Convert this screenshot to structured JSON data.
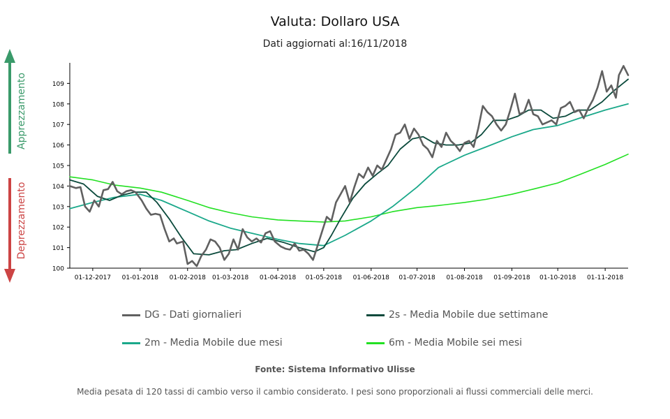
{
  "header": {
    "title": "Valuta: Dollaro USA",
    "subtitle": "Dati aggiornati al:16/11/2018"
  },
  "side_labels": {
    "up": "Apprezzamento",
    "down": "Deprezzamento",
    "up_color": "#3a9a6a",
    "down_color": "#cc4444"
  },
  "legend": [
    {
      "key": "dg",
      "label": "DG - Dati giornalieri",
      "color": "#606060"
    },
    {
      "key": "s2",
      "label": "2s - Media Mobile due settimane",
      "color": "#0b4a3c"
    },
    {
      "key": "m2",
      "label": "2m - Media Mobile due mesi",
      "color": "#1aa88a"
    },
    {
      "key": "m6",
      "label": "6m - Media Mobile sei mesi",
      "color": "#22e022"
    }
  ],
  "footer": {
    "source": "Fonte: Sistema Informativo Ulisse",
    "note": "Media pesata di 120 tassi di cambio verso il cambio considerato. I pesi sono proporzionali ai flussi commerciali delle merci."
  },
  "chart_data": {
    "type": "line",
    "x_ticks": [
      "01-12-2017",
      "01-01-2018",
      "01-02-2018",
      "01-03-2018",
      "01-04-2018",
      "01-05-2018",
      "01-06-2018",
      "01-07-2018",
      "01-08-2018",
      "01-09-2018",
      "01-10-2018",
      "01-11-2018"
    ],
    "x_range": [
      "2017-11-16",
      "2018-11-16"
    ],
    "ylim": [
      100,
      110
    ],
    "y_ticks": [
      100,
      101,
      102,
      103,
      104,
      105,
      106,
      107,
      108,
      109
    ],
    "grid": false,
    "legend_position": "bottom",
    "series": [
      {
        "key": "dg",
        "name": "DG - Dati giornalieri",
        "color": "#606060",
        "points": [
          [
            "2017-11-16",
            104.0
          ],
          [
            "2017-11-20",
            103.9
          ],
          [
            "2017-11-23",
            103.95
          ],
          [
            "2017-11-26",
            103.0
          ],
          [
            "2017-11-29",
            102.75
          ],
          [
            "2017-12-02",
            103.3
          ],
          [
            "2017-12-05",
            103.0
          ],
          [
            "2017-12-08",
            103.8
          ],
          [
            "2017-12-11",
            103.85
          ],
          [
            "2017-12-14",
            104.2
          ],
          [
            "2017-12-17",
            103.75
          ],
          [
            "2017-12-20",
            103.6
          ],
          [
            "2017-12-23",
            103.75
          ],
          [
            "2017-12-26",
            103.8
          ],
          [
            "2017-12-29",
            103.7
          ],
          [
            "2018-01-02",
            103.3
          ],
          [
            "2018-01-05",
            102.9
          ],
          [
            "2018-01-08",
            102.6
          ],
          [
            "2018-01-11",
            102.65
          ],
          [
            "2018-01-14",
            102.6
          ],
          [
            "2018-01-17",
            101.9
          ],
          [
            "2018-01-20",
            101.3
          ],
          [
            "2018-01-23",
            101.45
          ],
          [
            "2018-01-25",
            101.2
          ],
          [
            "2018-01-29",
            101.3
          ],
          [
            "2018-02-01",
            100.2
          ],
          [
            "2018-02-04",
            100.35
          ],
          [
            "2018-02-07",
            100.1
          ],
          [
            "2018-02-10",
            100.6
          ],
          [
            "2018-02-13",
            100.9
          ],
          [
            "2018-02-16",
            101.4
          ],
          [
            "2018-02-19",
            101.3
          ],
          [
            "2018-02-22",
            101.0
          ],
          [
            "2018-02-25",
            100.4
          ],
          [
            "2018-02-28",
            100.7
          ],
          [
            "2018-03-03",
            101.4
          ],
          [
            "2018-03-06",
            100.9
          ],
          [
            "2018-03-09",
            101.9
          ],
          [
            "2018-03-12",
            101.5
          ],
          [
            "2018-03-15",
            101.3
          ],
          [
            "2018-03-18",
            101.45
          ],
          [
            "2018-03-21",
            101.25
          ],
          [
            "2018-03-24",
            101.7
          ],
          [
            "2018-03-27",
            101.8
          ],
          [
            "2018-03-30",
            101.3
          ],
          [
            "2018-04-03",
            101.05
          ],
          [
            "2018-04-06",
            100.95
          ],
          [
            "2018-04-09",
            100.9
          ],
          [
            "2018-04-12",
            101.2
          ],
          [
            "2018-04-15",
            100.85
          ],
          [
            "2018-04-18",
            100.9
          ],
          [
            "2018-04-21",
            100.7
          ],
          [
            "2018-04-24",
            100.4
          ],
          [
            "2018-04-27",
            101.1
          ],
          [
            "2018-04-30",
            101.8
          ],
          [
            "2018-05-03",
            102.5
          ],
          [
            "2018-05-06",
            102.3
          ],
          [
            "2018-05-09",
            103.2
          ],
          [
            "2018-05-12",
            103.6
          ],
          [
            "2018-05-15",
            104.0
          ],
          [
            "2018-05-18",
            103.2
          ],
          [
            "2018-05-21",
            103.95
          ],
          [
            "2018-05-24",
            104.6
          ],
          [
            "2018-05-27",
            104.4
          ],
          [
            "2018-05-30",
            104.9
          ],
          [
            "2018-06-02",
            104.5
          ],
          [
            "2018-06-05",
            105.0
          ],
          [
            "2018-06-08",
            104.8
          ],
          [
            "2018-06-11",
            105.3
          ],
          [
            "2018-06-14",
            105.8
          ],
          [
            "2018-06-17",
            106.5
          ],
          [
            "2018-06-20",
            106.6
          ],
          [
            "2018-06-23",
            107.0
          ],
          [
            "2018-06-26",
            106.3
          ],
          [
            "2018-06-29",
            106.8
          ],
          [
            "2018-07-02",
            106.5
          ],
          [
            "2018-07-05",
            106.0
          ],
          [
            "2018-07-08",
            105.8
          ],
          [
            "2018-07-11",
            105.4
          ],
          [
            "2018-07-14",
            106.2
          ],
          [
            "2018-07-17",
            105.9
          ],
          [
            "2018-07-20",
            106.6
          ],
          [
            "2018-07-23",
            106.2
          ],
          [
            "2018-07-26",
            106.0
          ],
          [
            "2018-07-29",
            105.7
          ],
          [
            "2018-08-01",
            106.1
          ],
          [
            "2018-08-04",
            106.2
          ],
          [
            "2018-08-07",
            105.9
          ],
          [
            "2018-08-10",
            106.8
          ],
          [
            "2018-08-13",
            107.9
          ],
          [
            "2018-08-16",
            107.6
          ],
          [
            "2018-08-19",
            107.4
          ],
          [
            "2018-08-22",
            107.0
          ],
          [
            "2018-08-25",
            106.7
          ],
          [
            "2018-08-28",
            107.0
          ],
          [
            "2018-08-31",
            107.7
          ],
          [
            "2018-09-03",
            108.5
          ],
          [
            "2018-09-06",
            107.5
          ],
          [
            "2018-09-09",
            107.6
          ],
          [
            "2018-09-12",
            108.2
          ],
          [
            "2018-09-15",
            107.5
          ],
          [
            "2018-09-18",
            107.4
          ],
          [
            "2018-09-21",
            107.0
          ],
          [
            "2018-09-24",
            107.1
          ],
          [
            "2018-09-27",
            107.2
          ],
          [
            "2018-09-30",
            107.0
          ],
          [
            "2018-10-03",
            107.8
          ],
          [
            "2018-10-06",
            107.9
          ],
          [
            "2018-10-09",
            108.1
          ],
          [
            "2018-10-12",
            107.6
          ],
          [
            "2018-10-15",
            107.7
          ],
          [
            "2018-10-18",
            107.3
          ],
          [
            "2018-10-21",
            107.8
          ],
          [
            "2018-10-24",
            108.2
          ],
          [
            "2018-10-27",
            108.8
          ],
          [
            "2018-10-30",
            109.6
          ],
          [
            "2018-11-02",
            108.6
          ],
          [
            "2018-11-05",
            108.9
          ],
          [
            "2018-11-08",
            108.3
          ],
          [
            "2018-11-10",
            109.4
          ],
          [
            "2018-11-13",
            109.85
          ],
          [
            "2018-11-16",
            109.4
          ]
        ]
      },
      {
        "key": "s2",
        "name": "2s - Media Mobile due settimane",
        "color": "#0b4a3c",
        "points": [
          [
            "2017-11-16",
            104.3
          ],
          [
            "2017-11-25",
            104.1
          ],
          [
            "2017-12-04",
            103.5
          ],
          [
            "2017-12-12",
            103.3
          ],
          [
            "2017-12-20",
            103.55
          ],
          [
            "2017-12-28",
            103.7
          ],
          [
            "2018-01-05",
            103.7
          ],
          [
            "2018-01-12",
            103.2
          ],
          [
            "2018-01-20",
            102.4
          ],
          [
            "2018-01-28",
            101.5
          ],
          [
            "2018-02-05",
            100.7
          ],
          [
            "2018-02-15",
            100.65
          ],
          [
            "2018-02-25",
            100.85
          ],
          [
            "2018-03-05",
            100.9
          ],
          [
            "2018-03-15",
            101.2
          ],
          [
            "2018-03-25",
            101.45
          ],
          [
            "2018-04-05",
            101.25
          ],
          [
            "2018-04-15",
            101.0
          ],
          [
            "2018-04-25",
            100.8
          ],
          [
            "2018-05-01",
            101.0
          ],
          [
            "2018-05-06",
            101.6
          ],
          [
            "2018-05-12",
            102.4
          ],
          [
            "2018-05-20",
            103.4
          ],
          [
            "2018-05-28",
            104.1
          ],
          [
            "2018-06-05",
            104.6
          ],
          [
            "2018-06-12",
            105.0
          ],
          [
            "2018-06-20",
            105.8
          ],
          [
            "2018-06-28",
            106.3
          ],
          [
            "2018-07-05",
            106.4
          ],
          [
            "2018-07-12",
            106.1
          ],
          [
            "2018-07-20",
            106.0
          ],
          [
            "2018-07-28",
            106.0
          ],
          [
            "2018-08-05",
            106.1
          ],
          [
            "2018-08-12",
            106.5
          ],
          [
            "2018-08-20",
            107.2
          ],
          [
            "2018-08-28",
            107.2
          ],
          [
            "2018-09-05",
            107.4
          ],
          [
            "2018-09-12",
            107.7
          ],
          [
            "2018-09-20",
            107.7
          ],
          [
            "2018-09-28",
            107.3
          ],
          [
            "2018-10-06",
            107.4
          ],
          [
            "2018-10-14",
            107.7
          ],
          [
            "2018-10-22",
            107.7
          ],
          [
            "2018-10-30",
            108.1
          ],
          [
            "2018-11-06",
            108.6
          ],
          [
            "2018-11-16",
            109.2
          ]
        ]
      },
      {
        "key": "m2",
        "name": "2m - Media Mobile due mesi",
        "color": "#1aa88a",
        "points": [
          [
            "2017-11-16",
            102.9
          ],
          [
            "2017-12-01",
            103.2
          ],
          [
            "2017-12-15",
            103.45
          ],
          [
            "2018-01-01",
            103.6
          ],
          [
            "2018-01-15",
            103.3
          ],
          [
            "2018-02-01",
            102.75
          ],
          [
            "2018-02-15",
            102.3
          ],
          [
            "2018-03-01",
            101.95
          ],
          [
            "2018-03-15",
            101.7
          ],
          [
            "2018-04-01",
            101.4
          ],
          [
            "2018-04-15",
            101.2
          ],
          [
            "2018-05-01",
            101.1
          ],
          [
            "2018-05-15",
            101.6
          ],
          [
            "2018-06-01",
            102.3
          ],
          [
            "2018-06-15",
            103.0
          ],
          [
            "2018-07-01",
            103.95
          ],
          [
            "2018-07-15",
            104.9
          ],
          [
            "2018-08-01",
            105.5
          ],
          [
            "2018-08-15",
            105.9
          ],
          [
            "2018-09-01",
            106.4
          ],
          [
            "2018-09-15",
            106.75
          ],
          [
            "2018-10-01",
            106.95
          ],
          [
            "2018-10-15",
            107.3
          ],
          [
            "2018-11-01",
            107.7
          ],
          [
            "2018-11-16",
            108.0
          ]
        ]
      },
      {
        "key": "m6",
        "name": "6m - Media Mobile sei mesi",
        "color": "#22e022",
        "points": [
          [
            "2017-11-16",
            104.45
          ],
          [
            "2017-12-01",
            104.3
          ],
          [
            "2017-12-15",
            104.05
          ],
          [
            "2018-01-01",
            103.9
          ],
          [
            "2018-01-15",
            103.7
          ],
          [
            "2018-02-01",
            103.3
          ],
          [
            "2018-02-15",
            102.95
          ],
          [
            "2018-03-01",
            102.7
          ],
          [
            "2018-03-15",
            102.5
          ],
          [
            "2018-04-01",
            102.35
          ],
          [
            "2018-04-15",
            102.3
          ],
          [
            "2018-05-01",
            102.25
          ],
          [
            "2018-05-15",
            102.3
          ],
          [
            "2018-06-01",
            102.5
          ],
          [
            "2018-06-15",
            102.75
          ],
          [
            "2018-07-01",
            102.95
          ],
          [
            "2018-07-15",
            103.05
          ],
          [
            "2018-08-01",
            103.2
          ],
          [
            "2018-08-15",
            103.35
          ],
          [
            "2018-09-01",
            103.6
          ],
          [
            "2018-09-15",
            103.85
          ],
          [
            "2018-10-01",
            104.15
          ],
          [
            "2018-10-15",
            104.55
          ],
          [
            "2018-11-01",
            105.05
          ],
          [
            "2018-11-16",
            105.55
          ]
        ]
      }
    ]
  }
}
